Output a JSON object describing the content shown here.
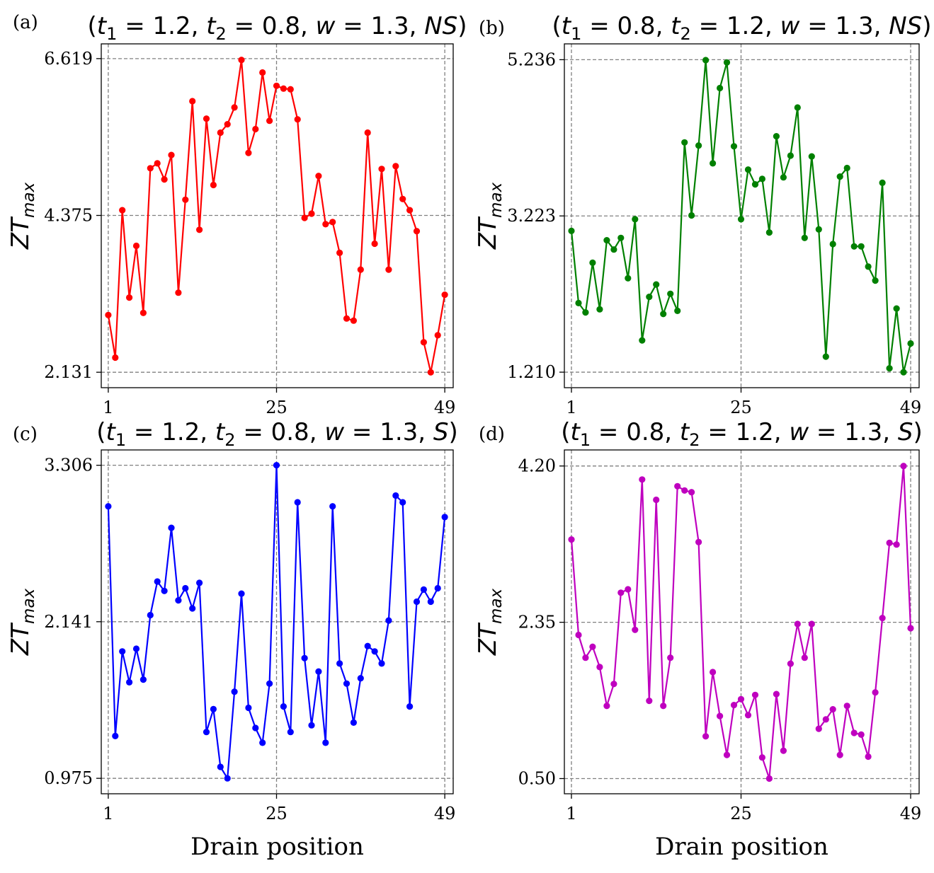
{
  "chart_data": [
    {
      "type": "line",
      "panel_label": "(a)",
      "title_parts": [
        "(",
        "t",
        "1",
        " = 1.2, ",
        "t",
        "2",
        " = 0.8, ",
        "w",
        " = 1.3, ",
        "NS",
        ")"
      ],
      "ylabel": [
        "ZT",
        "max"
      ],
      "xlabel": "",
      "color": "#ff0000",
      "xlim": [
        0,
        50.2
      ],
      "ylim": [
        1.91,
        6.83
      ],
      "xticks": [
        "1",
        "25",
        "49"
      ],
      "yticks": [
        "2.131",
        "4.375",
        "6.619"
      ],
      "grid": true,
      "x": [
        1,
        2,
        3,
        4,
        5,
        6,
        7,
        8,
        9,
        10,
        11,
        12,
        13,
        14,
        15,
        16,
        17,
        18,
        19,
        20,
        21,
        22,
        23,
        24,
        25,
        26,
        27,
        28,
        29,
        30,
        31,
        32,
        33,
        34,
        35,
        36,
        37,
        38,
        39,
        40,
        41,
        42,
        43,
        44,
        45,
        46,
        47,
        48,
        49
      ],
      "values": [
        2.95,
        2.34,
        4.45,
        3.2,
        3.94,
        2.98,
        5.05,
        5.12,
        4.89,
        5.24,
        3.27,
        4.6,
        6.01,
        4.17,
        5.76,
        4.81,
        5.56,
        5.68,
        5.92,
        6.6,
        5.27,
        5.61,
        6.42,
        5.73,
        6.23,
        6.19,
        6.18,
        5.75,
        4.34,
        4.4,
        4.94,
        4.25,
        4.28,
        3.84,
        2.9,
        2.87,
        3.6,
        5.56,
        3.97,
        5.04,
        3.6,
        5.08,
        4.61,
        4.45,
        4.15,
        2.56,
        2.13,
        2.66,
        3.24
      ]
    },
    {
      "type": "line",
      "panel_label": "(b)",
      "title_parts": [
        "(",
        "t",
        "1",
        " = 0.8, ",
        "t",
        "2",
        " = 1.2, ",
        "w",
        " = 1.3, ",
        "NS",
        ")"
      ],
      "ylabel": [
        "ZT",
        "max"
      ],
      "xlabel": "",
      "color": "#008000",
      "xlim": [
        0,
        50.2
      ],
      "ylim": [
        1.01,
        5.44
      ],
      "xticks": [
        "1",
        "25",
        "49"
      ],
      "yticks": [
        "1.210",
        "3.223",
        "5.236"
      ],
      "grid": true,
      "x": [
        1,
        2,
        3,
        4,
        5,
        6,
        7,
        8,
        9,
        10,
        11,
        12,
        13,
        14,
        15,
        16,
        17,
        18,
        19,
        20,
        21,
        22,
        23,
        24,
        25,
        26,
        27,
        28,
        29,
        30,
        31,
        32,
        33,
        34,
        35,
        36,
        37,
        38,
        39,
        40,
        41,
        42,
        43,
        44,
        45,
        46,
        47,
        48,
        49
      ],
      "values": [
        3.03,
        2.1,
        1.98,
        2.62,
        2.02,
        2.91,
        2.79,
        2.94,
        2.42,
        3.18,
        1.62,
        2.18,
        2.34,
        1.96,
        2.22,
        2.0,
        4.17,
        3.23,
        4.13,
        5.23,
        3.9,
        4.87,
        5.2,
        4.12,
        3.18,
        3.82,
        3.63,
        3.7,
        3.01,
        4.25,
        3.72,
        4.0,
        4.62,
        2.94,
        3.99,
        3.05,
        1.41,
        2.86,
        3.73,
        3.84,
        2.83,
        2.83,
        2.57,
        2.39,
        3.65,
        1.26,
        2.03,
        1.21,
        1.58
      ]
    },
    {
      "type": "line",
      "panel_label": "(c)",
      "title_parts": [
        "(",
        "t",
        "1",
        " = 1.2, ",
        "t",
        "2",
        " = 0.8, ",
        "w",
        " = 1.3, ",
        "S",
        ")"
      ],
      "ylabel": [
        "ZT",
        "max"
      ],
      "xlabel": "Drain position",
      "color": "#0000ff",
      "xlim": [
        0,
        50.2
      ],
      "ylim": [
        0.86,
        3.42
      ],
      "xticks": [
        "1",
        "25",
        "49"
      ],
      "yticks": [
        "0.975",
        "2.141",
        "3.306"
      ],
      "grid": true,
      "x": [
        1,
        2,
        3,
        4,
        5,
        6,
        7,
        8,
        9,
        10,
        11,
        12,
        13,
        14,
        15,
        16,
        17,
        18,
        19,
        20,
        21,
        22,
        23,
        24,
        25,
        26,
        27,
        28,
        29,
        30,
        31,
        32,
        33,
        34,
        35,
        36,
        37,
        38,
        39,
        40,
        41,
        42,
        43,
        44,
        45,
        46,
        47,
        48,
        49
      ],
      "values": [
        3.0,
        1.29,
        1.92,
        1.69,
        1.94,
        1.71,
        2.19,
        2.44,
        2.37,
        2.84,
        2.3,
        2.39,
        2.24,
        2.43,
        1.32,
        1.49,
        1.06,
        0.975,
        1.62,
        2.35,
        1.5,
        1.35,
        1.24,
        1.68,
        3.306,
        1.51,
        1.32,
        3.03,
        1.87,
        1.37,
        1.77,
        1.24,
        3.0,
        1.83,
        1.68,
        1.39,
        1.72,
        1.96,
        1.92,
        1.83,
        2.15,
        3.08,
        3.03,
        1.51,
        2.29,
        2.38,
        2.29,
        2.39,
        2.92
      ]
    },
    {
      "type": "line",
      "panel_label": "(d)",
      "title_parts": [
        "(",
        "t",
        "1",
        " = 0.8, ",
        "t",
        "2",
        " = 1.2, ",
        "w",
        " = 1.3, ",
        "S",
        ")"
      ],
      "ylabel": [
        "ZT",
        "max"
      ],
      "xlabel": "Drain position",
      "color": "#bf00bf",
      "xlim": [
        0,
        50.2
      ],
      "ylim": [
        0.32,
        4.39
      ],
      "xticks": [
        "1",
        "25",
        "49"
      ],
      "yticks": [
        "0.50",
        "2.35",
        "4.20"
      ],
      "grid": true,
      "x": [
        1,
        2,
        3,
        4,
        5,
        6,
        7,
        8,
        9,
        10,
        11,
        12,
        13,
        14,
        15,
        16,
        17,
        18,
        19,
        20,
        21,
        22,
        23,
        24,
        25,
        26,
        27,
        28,
        29,
        30,
        31,
        32,
        33,
        34,
        35,
        36,
        37,
        38,
        39,
        40,
        41,
        42,
        43,
        44,
        45,
        46,
        47,
        48,
        49
      ],
      "values": [
        3.33,
        2.2,
        1.93,
        2.06,
        1.82,
        1.36,
        1.62,
        2.7,
        2.74,
        2.26,
        4.04,
        1.42,
        3.8,
        1.36,
        1.93,
        3.96,
        3.91,
        3.89,
        3.3,
        1.0,
        1.76,
        1.24,
        0.78,
        1.37,
        1.44,
        1.25,
        1.49,
        0.75,
        0.5,
        1.5,
        0.83,
        1.86,
        2.33,
        1.93,
        2.33,
        1.09,
        1.2,
        1.32,
        0.78,
        1.36,
        1.04,
        1.02,
        0.76,
        1.52,
        2.4,
        3.29,
        3.27,
        4.2,
        2.28
      ]
    }
  ]
}
